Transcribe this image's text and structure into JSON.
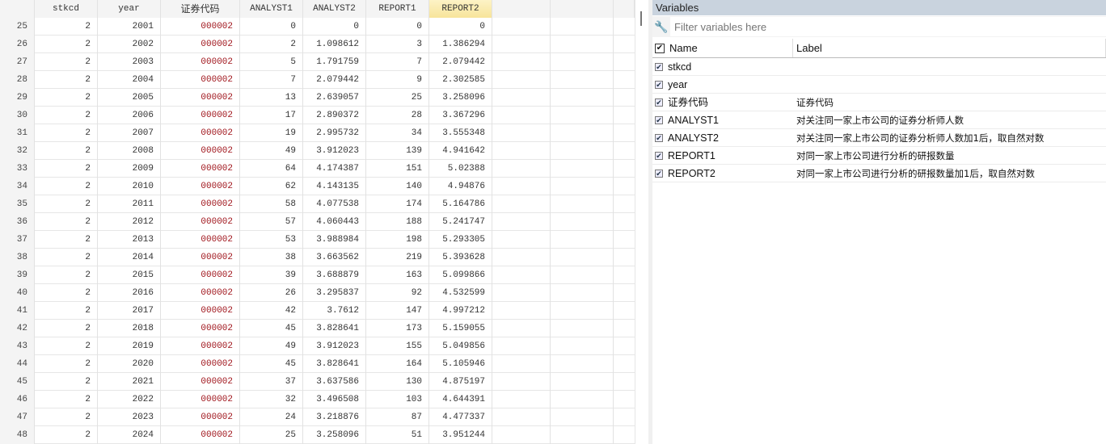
{
  "grid": {
    "columns": [
      "stkcd",
      "year",
      "证券代码",
      "ANALYST1",
      "ANALYST2",
      "REPORT1",
      "REPORT2"
    ],
    "selected_column": "REPORT2",
    "rows": [
      {
        "n": "25",
        "v": [
          "2",
          "2001",
          "000002",
          "0",
          "0",
          "0",
          "0"
        ]
      },
      {
        "n": "26",
        "v": [
          "2",
          "2002",
          "000002",
          "2",
          "1.098612",
          "3",
          "1.386294"
        ]
      },
      {
        "n": "27",
        "v": [
          "2",
          "2003",
          "000002",
          "5",
          "1.791759",
          "7",
          "2.079442"
        ]
      },
      {
        "n": "28",
        "v": [
          "2",
          "2004",
          "000002",
          "7",
          "2.079442",
          "9",
          "2.302585"
        ]
      },
      {
        "n": "29",
        "v": [
          "2",
          "2005",
          "000002",
          "13",
          "2.639057",
          "25",
          "3.258096"
        ]
      },
      {
        "n": "30",
        "v": [
          "2",
          "2006",
          "000002",
          "17",
          "2.890372",
          "28",
          "3.367296"
        ]
      },
      {
        "n": "31",
        "v": [
          "2",
          "2007",
          "000002",
          "19",
          "2.995732",
          "34",
          "3.555348"
        ]
      },
      {
        "n": "32",
        "v": [
          "2",
          "2008",
          "000002",
          "49",
          "3.912023",
          "139",
          "4.941642"
        ]
      },
      {
        "n": "33",
        "v": [
          "2",
          "2009",
          "000002",
          "64",
          "4.174387",
          "151",
          "5.02388"
        ]
      },
      {
        "n": "34",
        "v": [
          "2",
          "2010",
          "000002",
          "62",
          "4.143135",
          "140",
          "4.94876"
        ]
      },
      {
        "n": "35",
        "v": [
          "2",
          "2011",
          "000002",
          "58",
          "4.077538",
          "174",
          "5.164786"
        ]
      },
      {
        "n": "36",
        "v": [
          "2",
          "2012",
          "000002",
          "57",
          "4.060443",
          "188",
          "5.241747"
        ]
      },
      {
        "n": "37",
        "v": [
          "2",
          "2013",
          "000002",
          "53",
          "3.988984",
          "198",
          "5.293305"
        ]
      },
      {
        "n": "38",
        "v": [
          "2",
          "2014",
          "000002",
          "38",
          "3.663562",
          "219",
          "5.393628"
        ]
      },
      {
        "n": "39",
        "v": [
          "2",
          "2015",
          "000002",
          "39",
          "3.688879",
          "163",
          "5.099866"
        ]
      },
      {
        "n": "40",
        "v": [
          "2",
          "2016",
          "000002",
          "26",
          "3.295837",
          "92",
          "4.532599"
        ]
      },
      {
        "n": "41",
        "v": [
          "2",
          "2017",
          "000002",
          "42",
          "3.7612",
          "147",
          "4.997212"
        ]
      },
      {
        "n": "42",
        "v": [
          "2",
          "2018",
          "000002",
          "45",
          "3.828641",
          "173",
          "5.159055"
        ]
      },
      {
        "n": "43",
        "v": [
          "2",
          "2019",
          "000002",
          "49",
          "3.912023",
          "155",
          "5.049856"
        ]
      },
      {
        "n": "44",
        "v": [
          "2",
          "2020",
          "000002",
          "45",
          "3.828641",
          "164",
          "5.105946"
        ]
      },
      {
        "n": "45",
        "v": [
          "2",
          "2021",
          "000002",
          "37",
          "3.637586",
          "130",
          "4.875197"
        ]
      },
      {
        "n": "46",
        "v": [
          "2",
          "2022",
          "000002",
          "32",
          "3.496508",
          "103",
          "4.644391"
        ]
      },
      {
        "n": "47",
        "v": [
          "2",
          "2023",
          "000002",
          "24",
          "3.218876",
          "87",
          "4.477337"
        ]
      },
      {
        "n": "48",
        "v": [
          "2",
          "2024",
          "000002",
          "25",
          "3.258096",
          "51",
          "3.951244"
        ]
      }
    ]
  },
  "variables": {
    "title": "Variables",
    "filter_placeholder": "Filter variables here",
    "col_name": "Name",
    "col_label": "Label",
    "items": [
      {
        "name": "stkcd",
        "label": ""
      },
      {
        "name": "year",
        "label": ""
      },
      {
        "name": "证券代码",
        "label": "证券代码"
      },
      {
        "name": "ANALYST1",
        "label": "对关注同一家上市公司的证券分析师人数"
      },
      {
        "name": "ANALYST2",
        "label": "对关注同一家上市公司的证券分析师人数加1后，取自然对数"
      },
      {
        "name": "REPORT1",
        "label": "对同一家上市公司进行分析的研报数量"
      },
      {
        "name": "REPORT2",
        "label": "对同一家上市公司进行分析的研报数量加1后，取自然对数"
      }
    ]
  }
}
